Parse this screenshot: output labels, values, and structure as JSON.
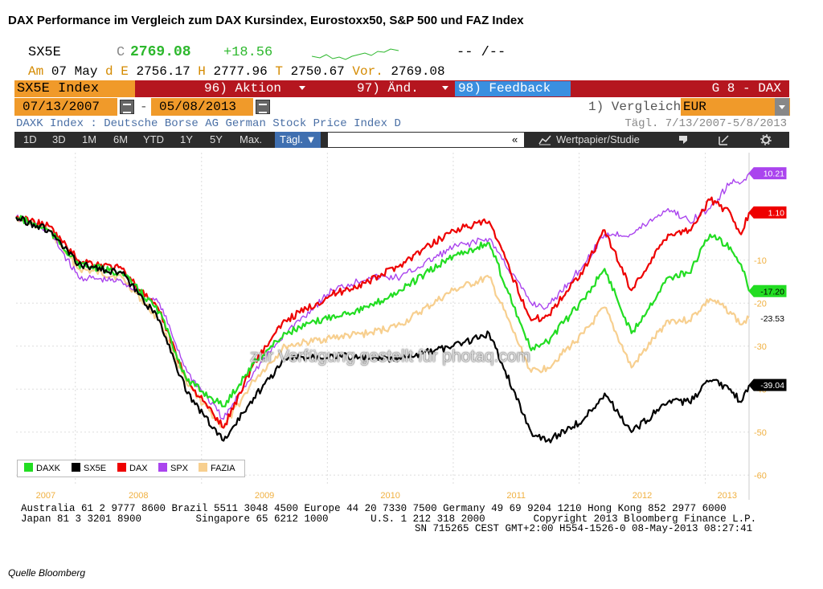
{
  "title": "DAX Performance im Vergleich zum DAX Kursindex, Eurostoxx50, S&P 500 und FAZ Index",
  "quote": {
    "ticker": "SX5E",
    "flag": "C",
    "last": "2769.08",
    "change": "+18.56",
    "dashes": "-- /--",
    "am_label": "Am",
    "date": "07 May",
    "d_label": "d",
    "e_label": "E",
    "e_val": "2756.17",
    "h_label": "H",
    "h_val": "2777.96",
    "t_label": "T",
    "t_val": "2750.67",
    "vor_label": "Vor.",
    "vor_val": "2769.08"
  },
  "toolbar": {
    "index_label": "SX5E Index",
    "menu1": "96) Aktion",
    "menu2": "97) Änd.",
    "menu3": "98) Feedback",
    "right": "G 8 - DAX"
  },
  "range": {
    "start": "07/13/2007",
    "sep": "-",
    "end": "05/08/2013",
    "vergleich_label": "1) Vergleich",
    "currency": "EUR"
  },
  "description": "DAXK Index : Deutsche Borse AG German Stock Price Index D",
  "description_right": "Tägl.   7/13/2007-5/8/2013",
  "periods": [
    "1D",
    "3D",
    "1M",
    "6M",
    "YTD",
    "1Y",
    "5Y",
    "Max."
  ],
  "period_selected": "Tägl. ▼",
  "tb_collapse": "«",
  "tb_study": "Wertpapier/Studie",
  "watermark": "zur Verfügung gestellt für photaq.com",
  "footer": {
    "line1": "Australia 61 2 9777 8600 Brazil 5511 3048 4500 Europe 44 20 7330 7500 Germany 49 69 9204 1210 Hong Kong 852 2977 6000",
    "line2": "Japan 81 3 3201 8900         Singapore 65 6212 1000       U.S. 1 212 318 2000        Copyright 2013 Bloomberg Finance L.P.",
    "line3": "SN 715265 CEST GMT+2:00 H554-1526-0 08-May-2013 08:27:41"
  },
  "source": "Quelle Bloomberg",
  "colors": {
    "DAXK": "#22dd22",
    "SX5E": "#000000",
    "DAX": "#ee0000",
    "SPX": "#aa44ee",
    "FAZIA": "#f7cf8f",
    "axis_text": "#f0b040"
  },
  "chart_data": {
    "type": "line",
    "x_start": "2007-07-13",
    "x_end": "2013-05-08",
    "ylim": [
      -62,
      15
    ],
    "y_ticks": [
      -60,
      -50,
      -40,
      -30,
      -20,
      -10
    ],
    "x_ticks": [
      "2007",
      "2008",
      "2009",
      "2010",
      "2011",
      "2012",
      "2013"
    ],
    "grid": true,
    "legend_position": "bottom-left",
    "last_value_labels": {
      "SPX": "10.21",
      "DAX": "1.10",
      "DAXK": "-17.20",
      "FAZIA": "-23.53",
      "SX5E": "-39.04"
    },
    "series": [
      {
        "name": "DAXK",
        "x": [
          "2007-07-13",
          "2007-10-15",
          "2008-01-10",
          "2008-05-15",
          "2008-09-01",
          "2008-11-20",
          "2009-03-06",
          "2009-06-01",
          "2009-09-01",
          "2010-01-15",
          "2010-05-01",
          "2010-08-01",
          "2011-01-01",
          "2011-04-15",
          "2011-08-15",
          "2011-10-01",
          "2012-01-15",
          "2012-03-15",
          "2012-06-01",
          "2012-09-15",
          "2012-11-15",
          "2013-01-15",
          "2013-03-15",
          "2013-04-15",
          "2013-05-08"
        ],
        "y": [
          0,
          -3,
          -11,
          -13,
          -22,
          -38,
          -44,
          -34,
          -27,
          -23,
          -21,
          -17,
          -9,
          -6,
          -31,
          -29,
          -19,
          -12,
          -27,
          -14,
          -13,
          -4,
          -7,
          -11,
          -17.2
        ]
      },
      {
        "name": "SX5E",
        "x": [
          "2007-07-13",
          "2007-10-15",
          "2008-01-10",
          "2008-05-15",
          "2008-09-01",
          "2008-11-20",
          "2009-03-06",
          "2009-06-01",
          "2009-09-01",
          "2010-01-15",
          "2010-05-01",
          "2010-08-01",
          "2011-01-01",
          "2011-04-15",
          "2011-08-15",
          "2011-10-01",
          "2012-01-15",
          "2012-03-15",
          "2012-06-01",
          "2012-09-15",
          "2012-11-15",
          "2013-01-15",
          "2013-03-15",
          "2013-04-15",
          "2013-05-08"
        ],
        "y": [
          0,
          -3,
          -11,
          -13,
          -24,
          -41,
          -52,
          -42,
          -33,
          -32,
          -33,
          -33,
          -30,
          -27,
          -50,
          -52,
          -47,
          -41,
          -50,
          -43,
          -43,
          -38,
          -40,
          -43,
          -39.04
        ]
      },
      {
        "name": "DAX",
        "x": [
          "2007-07-13",
          "2007-10-15",
          "2008-01-10",
          "2008-05-15",
          "2008-09-01",
          "2008-11-20",
          "2009-03-06",
          "2009-06-01",
          "2009-09-01",
          "2010-01-15",
          "2010-05-01",
          "2010-08-01",
          "2011-01-01",
          "2011-04-15",
          "2011-08-15",
          "2011-10-01",
          "2012-01-15",
          "2012-03-15",
          "2012-06-01",
          "2012-09-15",
          "2012-11-15",
          "2013-01-15",
          "2013-03-15",
          "2013-04-15",
          "2013-05-08"
        ],
        "y": [
          0,
          -2,
          -10,
          -12,
          -22,
          -38,
          -49,
          -34,
          -24,
          -18,
          -15,
          -11,
          -3,
          -1,
          -24,
          -23,
          -12,
          -3,
          -17,
          -4,
          -3,
          4,
          1,
          -4,
          1.1
        ]
      },
      {
        "name": "SPX",
        "x": [
          "2007-07-13",
          "2007-10-15",
          "2008-01-10",
          "2008-05-15",
          "2008-09-01",
          "2008-11-20",
          "2009-03-06",
          "2009-06-01",
          "2009-09-01",
          "2010-01-15",
          "2010-05-01",
          "2010-08-01",
          "2011-01-01",
          "2011-04-15",
          "2011-08-15",
          "2011-10-01",
          "2012-01-15",
          "2012-03-15",
          "2012-06-01",
          "2012-09-15",
          "2012-11-15",
          "2013-01-15",
          "2013-03-15",
          "2013-04-15",
          "2013-05-08"
        ],
        "y": [
          0,
          -3,
          -14,
          -15,
          -20,
          -36,
          -47,
          -36,
          -27,
          -17,
          -14,
          -14,
          -7,
          -5,
          -20,
          -21,
          -11,
          -4,
          -4,
          2,
          -1,
          2,
          8,
          8,
          10.21
        ]
      },
      {
        "name": "FAZIA",
        "x": [
          "2007-07-13",
          "2007-10-15",
          "2008-01-10",
          "2008-05-15",
          "2008-09-01",
          "2008-11-20",
          "2009-03-06",
          "2009-06-01",
          "2009-09-01",
          "2010-01-15",
          "2010-05-01",
          "2010-08-01",
          "2011-01-01",
          "2011-04-15",
          "2011-08-15",
          "2011-10-01",
          "2012-01-15",
          "2012-03-15",
          "2012-06-01",
          "2012-09-15",
          "2012-11-15",
          "2013-01-15",
          "2013-03-15",
          "2013-04-15",
          "2013-05-08"
        ],
        "y": [
          0,
          -3,
          -12,
          -14,
          -24,
          -39,
          -49,
          -38,
          -30,
          -28,
          -27,
          -25,
          -17,
          -14,
          -36,
          -35,
          -27,
          -21,
          -35,
          -24,
          -24,
          -19,
          -22,
          -25,
          -23.53
        ]
      }
    ]
  }
}
